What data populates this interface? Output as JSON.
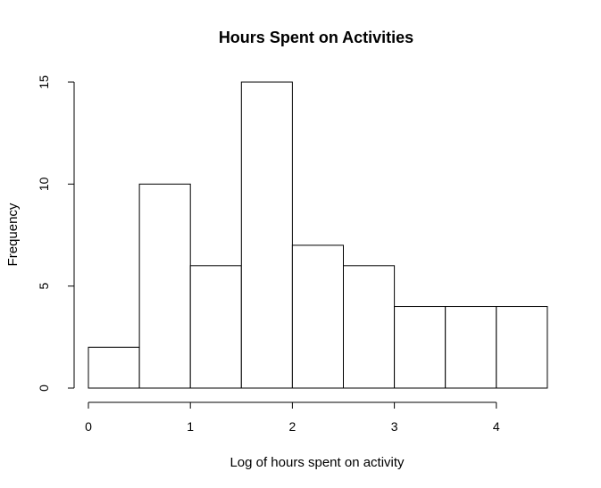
{
  "chart_data": {
    "type": "bar",
    "title": "Hours Spent on Activities",
    "xlabel": "Log of hours spent on activity",
    "ylabel": "Frequency",
    "bins": [
      {
        "x0": 0.0,
        "x1": 0.5,
        "count": 2
      },
      {
        "x0": 0.5,
        "x1": 1.0,
        "count": 10
      },
      {
        "x0": 1.0,
        "x1": 1.5,
        "count": 6
      },
      {
        "x0": 1.5,
        "x1": 2.0,
        "count": 15
      },
      {
        "x0": 2.0,
        "x1": 2.5,
        "count": 7
      },
      {
        "x0": 2.5,
        "x1": 3.0,
        "count": 6
      },
      {
        "x0": 3.0,
        "x1": 3.5,
        "count": 4
      },
      {
        "x0": 3.5,
        "x1": 4.0,
        "count": 4
      },
      {
        "x0": 4.0,
        "x1": 4.5,
        "count": 4
      }
    ],
    "xticks": [
      0,
      1,
      2,
      3,
      4
    ],
    "yticks": [
      0,
      5,
      10,
      15
    ],
    "xlim": [
      0,
      4.5
    ],
    "ylim": [
      0,
      15
    ],
    "grid": false,
    "legend": "none"
  }
}
